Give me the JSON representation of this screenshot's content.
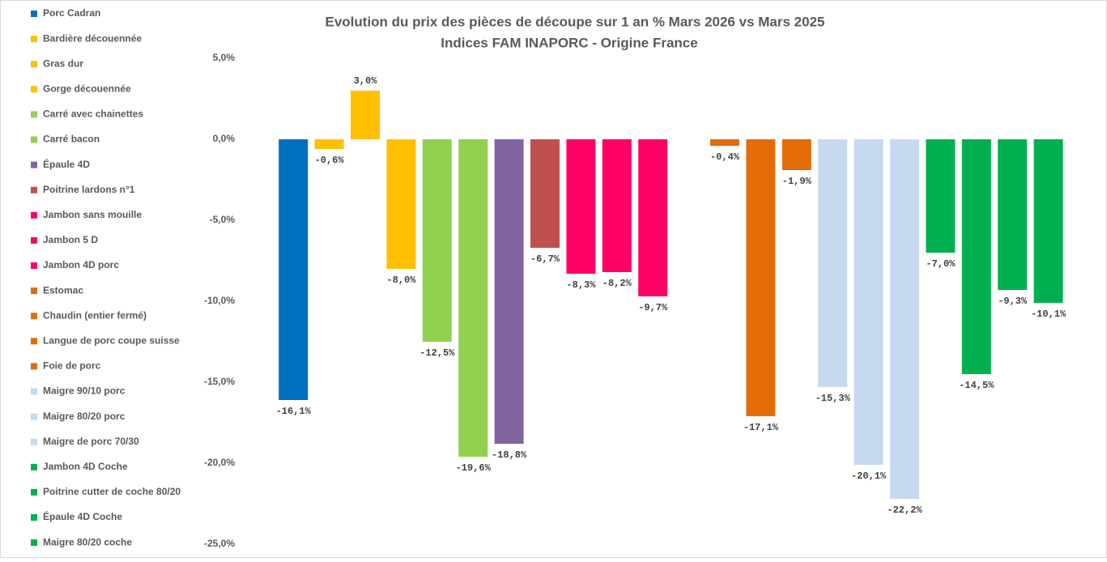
{
  "chart_data": {
    "type": "bar",
    "title": "Evolution du prix des pièces de découpe sur 1 an % Mars 2026 vs Mars 2025",
    "subtitle": "Indices FAM INAPORC - Origine France",
    "categories": [
      "Porc Cadran",
      "Bardière découennée",
      "Gras dur",
      "Gorge découennée",
      "Carré avec chainettes",
      "Carré bacon",
      "Épaule 4D",
      "Poitrine lardons n°1",
      "Jambon sans mouille",
      "Jambon 5 D",
      "Jambon 4D porc",
      "Estomac",
      "Chaudin (entier fermé)",
      "Langue de porc coupe suisse",
      "Foie de porc",
      "Maigre 90/10 porc",
      "Maigre 80/20 porc",
      "Maigre de porc 70/30",
      "Jambon 4D Coche",
      "Poitrine cutter de coche 80/20",
      "Épaule 4D Coche",
      "Maigre 80/20 coche"
    ],
    "values": [
      -16.1,
      -0.6,
      3.0,
      -8.0,
      -12.5,
      -19.6,
      -18.8,
      -6.7,
      -8.3,
      -8.2,
      -9.7,
      null,
      -0.4,
      -17.1,
      -1.9,
      -15.3,
      -20.1,
      -22.2,
      -7.0,
      -14.5,
      -9.3,
      -10.1
    ],
    "value_labels": [
      "-16,1%",
      "-0,6%",
      "3,0%",
      "-8,0%",
      "-12,5%",
      "-19,6%",
      "-18,8%",
      "-6,7%",
      "-8,3%",
      "-8,2%",
      "-9,7%",
      null,
      "-0,4%",
      "-17,1%",
      "-1,9%",
      "-15,3%",
      "-20,1%",
      "-22,2%",
      "-7,0%",
      "-14,5%",
      "-9,3%",
      "-10,1%"
    ],
    "colors": [
      "#0070c0",
      "#ffc000",
      "#ffc000",
      "#ffc000",
      "#92d050",
      "#92d050",
      "#8064a2",
      "#c0504d",
      "#ff0066",
      "#ff0066",
      "#ff0066",
      "#e36c09",
      "#e36c09",
      "#e36c09",
      "#e36c09",
      "#c6d9f1",
      "#c6d9f1",
      "#c6d9f1",
      "#00b050",
      "#00b050",
      "#00b050",
      "#00b050"
    ],
    "ylim": [
      -25,
      5
    ],
    "yticks": [
      {
        "value": 5,
        "label": "5,0%"
      },
      {
        "value": 0,
        "label": "0,0%"
      },
      {
        "value": -5,
        "label": "-5,0%"
      },
      {
        "value": -10,
        "label": "-10,0%"
      },
      {
        "value": -15,
        "label": "-15,0%"
      },
      {
        "value": -20,
        "label": "-20,0%"
      },
      {
        "value": -25,
        "label": "-25,0%"
      }
    ],
    "grid": false,
    "legend": "left"
  }
}
